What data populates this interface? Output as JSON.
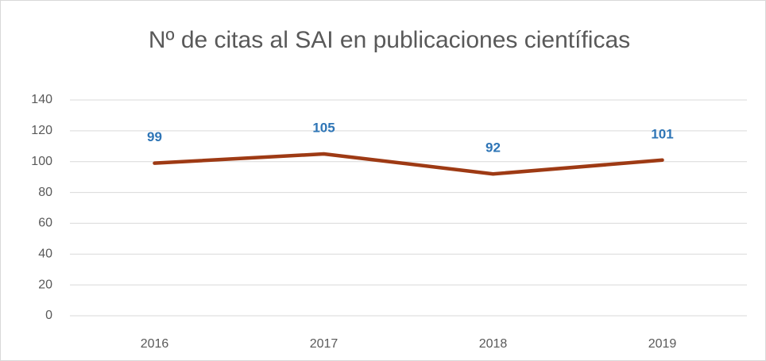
{
  "chart_data": {
    "type": "line",
    "title": "Nº de citas al SAI en publicaciones científicas",
    "categories": [
      "2016",
      "2017",
      "2018",
      "2019"
    ],
    "values": [
      99,
      105,
      92,
      101
    ],
    "color": "#9e3a14",
    "label_color": "#2e75b6",
    "ylim": [
      0,
      140
    ],
    "yticks": [
      0,
      20,
      40,
      60,
      80,
      100,
      120,
      140
    ],
    "grid": true
  }
}
